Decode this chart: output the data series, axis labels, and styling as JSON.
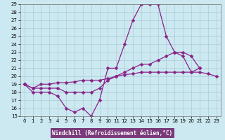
{
  "title": "",
  "xlabel": "Windchill (Refroidissement éolien,°C)",
  "hours": [
    0,
    1,
    2,
    3,
    4,
    5,
    6,
    7,
    8,
    9,
    10,
    11,
    12,
    13,
    14,
    15,
    16,
    17,
    18,
    19,
    20,
    21,
    22,
    23
  ],
  "line1": [
    19,
    18,
    18,
    18,
    17.5,
    16,
    15.5,
    16,
    15,
    17,
    21,
    21,
    24,
    27,
    29,
    29,
    29,
    25,
    23,
    22.5,
    20.5,
    21,
    null,
    null
  ],
  "line2": [
    19,
    18.5,
    18.5,
    18.5,
    18.5,
    18,
    18,
    18,
    18,
    18.5,
    19.5,
    20,
    20.5,
    21,
    21.5,
    21.5,
    22,
    22.5,
    23,
    23,
    22.5,
    21,
    null,
    null
  ],
  "line3": [
    19,
    18.5,
    19,
    19,
    19.2,
    19.2,
    19.3,
    19.5,
    19.5,
    19.5,
    19.7,
    20,
    20.2,
    20.3,
    20.5,
    20.5,
    20.5,
    20.5,
    20.5,
    20.5,
    20.5,
    20.5,
    20.3,
    20
  ],
  "bg_color": "#cce8f0",
  "grid_color": "#aaccd8",
  "line_color": "#882288",
  "marker": "D",
  "markersize": 2.5,
  "linewidth": 0.9,
  "ylim": [
    15,
    29
  ],
  "xlim": [
    -0.5,
    23.5
  ],
  "yticks": [
    15,
    16,
    17,
    18,
    19,
    20,
    21,
    22,
    23,
    24,
    25,
    26,
    27,
    28,
    29
  ],
  "xticks": [
    0,
    1,
    2,
    3,
    4,
    5,
    6,
    7,
    8,
    9,
    10,
    11,
    12,
    13,
    14,
    15,
    16,
    17,
    18,
    19,
    20,
    21,
    22,
    23
  ],
  "xlabel_bg": "#7a3a7a",
  "xlabel_fg": "#ffffff",
  "tick_fontsize": 5,
  "xlabel_fontsize": 5.5
}
